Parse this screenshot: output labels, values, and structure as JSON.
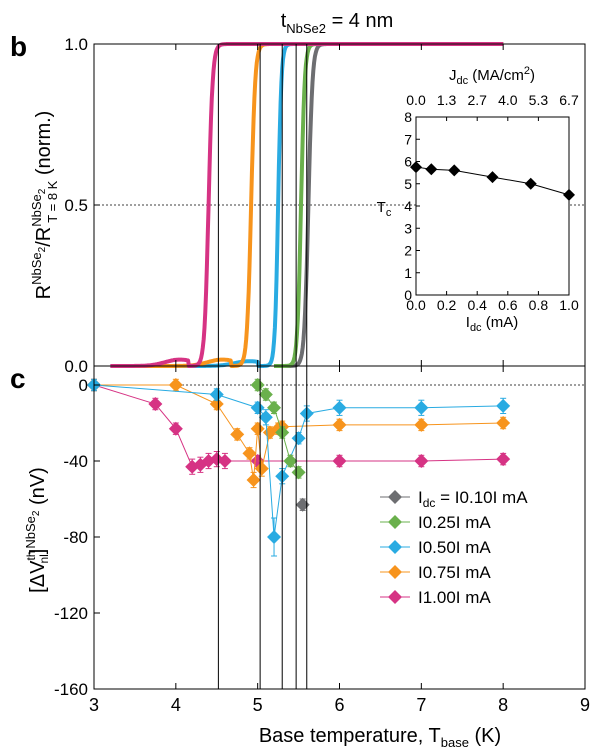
{
  "figure": {
    "title": "t",
    "title_sub": "NbSe2",
    "title_value": " = 4 nm",
    "vlines_K": [
      4.52,
      5.03,
      5.3,
      5.47,
      5.6
    ]
  },
  "chart_data": [
    {
      "type": "line",
      "panel_label": "b",
      "ylabel": {
        "main": "R",
        "sup1": "NbSe",
        "sup1_sub": "2",
        "sep": "/R",
        "sup2": "NbSe",
        "sup2_sub": "2",
        "sub2": "T = 8 K",
        "tail": " (norm.)"
      },
      "xlim": [
        3,
        9
      ],
      "ylim": [
        0,
        1
      ],
      "yticks": [
        "0.0",
        "0.5",
        "1.0"
      ],
      "ytick_values": [
        0,
        0.5,
        1
      ],
      "ref_line": 0.5,
      "series": [
        {
          "color": "#6d6e71",
          "tmid": 5.62,
          "width": 0.1,
          "bump": 0.0,
          "tstart": 5.3
        },
        {
          "color": "#6ab04c",
          "tmid": 5.53,
          "width": 0.09,
          "bump": 0.0,
          "tstart": 5.2
        },
        {
          "color": "#29abe2",
          "tmid": 5.25,
          "width": 0.08,
          "bump": 0.015,
          "tstart": 3.2
        },
        {
          "color": "#f7941d",
          "tmid": 4.92,
          "width": 0.1,
          "bump": 0.02,
          "tstart": 3.4
        },
        {
          "color": "#d63384",
          "tmid": 4.4,
          "width": 0.1,
          "bump": 0.02,
          "tstart": 3.2
        }
      ],
      "inset": {
        "top_axis_label": {
          "main": "J",
          "sub": "dc",
          "tail": " (MA/cm",
          "sup": "2",
          "end": ")"
        },
        "top_ticks": [
          "0.0",
          "1.3",
          "2.7",
          "4.0",
          "5.3",
          "6.7"
        ],
        "bottom_axis_label": {
          "main": "I",
          "sub": "dc",
          "tail": " (mA)"
        },
        "bottom_ticks": [
          "0.0",
          "0.2",
          "0.4",
          "0.6",
          "0.8",
          "1.0"
        ],
        "ylabel": {
          "main": "T",
          "sub": "c"
        },
        "yticks": [
          "0",
          "1",
          "2",
          "3",
          "4",
          "5",
          "6",
          "7",
          "8"
        ],
        "xlim": [
          0,
          1
        ],
        "ylim": [
          0,
          8
        ],
        "points": [
          {
            "x": 0.0,
            "y": 5.75
          },
          {
            "x": 0.1,
            "y": 5.65
          },
          {
            "x": 0.25,
            "y": 5.6
          },
          {
            "x": 0.5,
            "y": 5.3
          },
          {
            "x": 0.75,
            "y": 5.0
          },
          {
            "x": 1.0,
            "y": 4.5
          }
        ]
      }
    },
    {
      "type": "line",
      "panel_label": "c",
      "xlabel": {
        "main": "Base temperature, T",
        "sub": "base",
        "tail": " (K)"
      },
      "ylabel": {
        "pre": "[ΔV",
        "sup": "th",
        "sub": "nl",
        "mid": "]",
        "sup2": "NbSe",
        "sup2_sub": "2",
        "tail": " (nV)"
      },
      "xlim": [
        3,
        9
      ],
      "ylim": [
        -160,
        10
      ],
      "xticks": [
        "3",
        "4",
        "5",
        "6",
        "7",
        "8",
        "9"
      ],
      "yticks": [
        "-160",
        "-120",
        "-80",
        "-40",
        "0"
      ],
      "ytick_values": [
        -160,
        -120,
        -80,
        -40,
        0
      ],
      "ref_line": 0,
      "series": [
        {
          "name": "I",
          "name_sub": "dc",
          "name_tail": " = I0.10I mA",
          "color": "#6d6e71",
          "points": [
            [
              5.55,
              -63
            ]
          ],
          "errors": [
            3
          ]
        },
        {
          "name": "I0.25I mA",
          "color": "#6ab04c",
          "points": [
            [
              5.0,
              0
            ],
            [
              5.1,
              -5
            ],
            [
              5.2,
              -12
            ],
            [
              5.3,
              -25
            ],
            [
              5.4,
              -40
            ],
            [
              5.5,
              -46
            ]
          ],
          "errors": [
            3,
            3,
            3,
            3,
            3,
            3
          ]
        },
        {
          "name": "I0.50I mA",
          "color": "#29abe2",
          "points": [
            [
              3.0,
              0
            ],
            [
              4.5,
              -5
            ],
            [
              5.0,
              -12
            ],
            [
              5.1,
              -17
            ],
            [
              5.2,
              -80
            ],
            [
              5.3,
              -48
            ],
            [
              5.5,
              -28
            ],
            [
              5.6,
              -15
            ],
            [
              6.0,
              -12
            ],
            [
              7.0,
              -12
            ],
            [
              8.0,
              -11
            ]
          ],
          "errors": [
            3,
            3,
            3,
            4,
            10,
            4,
            3,
            4,
            4,
            4,
            4
          ]
        },
        {
          "name": "I0.75I mA",
          "color": "#f7941d",
          "points": [
            [
              3.0,
              0
            ],
            [
              4.0,
              0
            ],
            [
              4.5,
              -10
            ],
            [
              4.75,
              -26
            ],
            [
              4.9,
              -36
            ],
            [
              4.95,
              -50
            ],
            [
              5.0,
              -23
            ],
            [
              5.05,
              -44
            ],
            [
              5.15,
              -25
            ],
            [
              5.25,
              -23
            ],
            [
              5.3,
              -22
            ],
            [
              6.0,
              -21
            ],
            [
              7.0,
              -21
            ],
            [
              8.0,
              -20
            ]
          ],
          "errors": [
            3,
            3,
            3,
            3,
            3,
            4,
            3,
            4,
            3,
            3,
            3,
            3,
            3,
            3
          ]
        },
        {
          "name": "I1.00I mA",
          "color": "#d63384",
          "points": [
            [
              3.0,
              0
            ],
            [
              3.75,
              -10
            ],
            [
              4.0,
              -23
            ],
            [
              4.2,
              -43
            ],
            [
              4.3,
              -42
            ],
            [
              4.4,
              -40
            ],
            [
              4.5,
              -39
            ],
            [
              4.6,
              -40
            ],
            [
              5.0,
              -40
            ],
            [
              6.0,
              -40
            ],
            [
              7.0,
              -40
            ],
            [
              8.0,
              -39
            ]
          ],
          "errors": [
            3,
            3,
            3,
            4,
            4,
            4,
            4,
            4,
            3,
            3,
            3,
            3
          ]
        }
      ]
    }
  ]
}
